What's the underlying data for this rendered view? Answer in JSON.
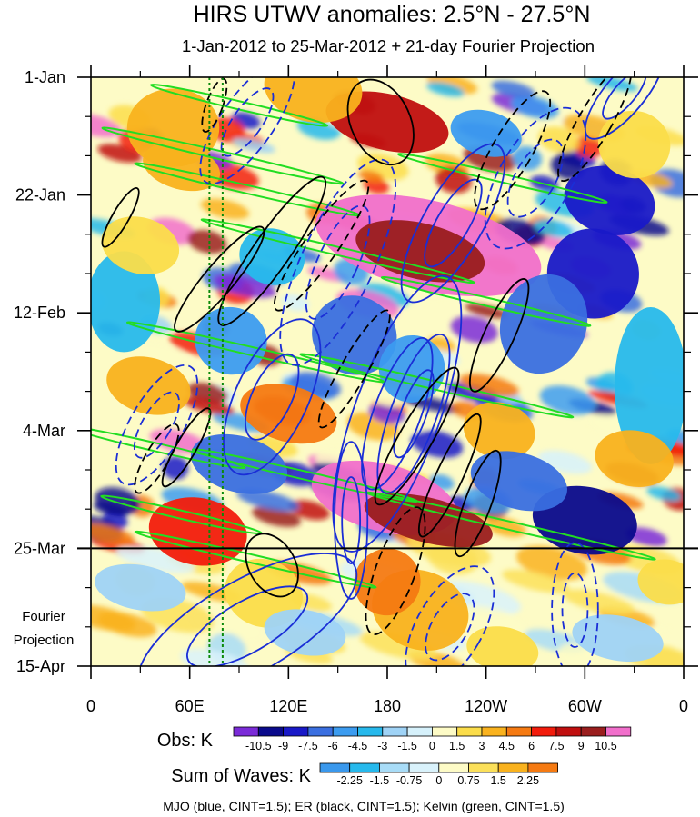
{
  "chart_data": {
    "type": "heatmap",
    "title": "HIRS UTWV anomalies: 2.5°N - 27.5°N",
    "subtitle": "1-Jan-2012 to 25-Mar-2012 + 21-day Fourier Projection",
    "x_axis": {
      "ticks": [
        {
          "lon": 0,
          "label": "0"
        },
        {
          "lon": 60,
          "label": "60E"
        },
        {
          "lon": 120,
          "label": "120E"
        },
        {
          "lon": 180,
          "label": "180"
        },
        {
          "lon": 240,
          "label": "120W"
        },
        {
          "lon": 300,
          "label": "60W"
        },
        {
          "lon": 360,
          "label": "0"
        }
      ],
      "range": [
        0,
        360
      ]
    },
    "y_axis": {
      "ticks": [
        {
          "day": 0,
          "label": "1-Jan"
        },
        {
          "day": 21,
          "label": "22-Jan"
        },
        {
          "day": 42,
          "label": "12-Feb"
        },
        {
          "day": 63,
          "label": "4-Mar"
        },
        {
          "day": 84,
          "label": "25-Mar"
        },
        {
          "day": 105,
          "label": "15-Apr"
        }
      ],
      "range": [
        0,
        105
      ],
      "reversed": true
    },
    "projection_start_day": 84,
    "projection_label": [
      "Fourier",
      "Projection"
    ],
    "reference_longitudes": [
      72,
      80
    ],
    "obs_colorbar": {
      "label": "Obs: K",
      "colors": [
        "#7b2bd8",
        "#0a0a8c",
        "#1919c8",
        "#3a6fe0",
        "#3c9cf0",
        "#27b9ec",
        "#9fd3f6",
        "#d6f1fb",
        "#fdfbc6",
        "#fbdd4a",
        "#f9b21e",
        "#f57a12",
        "#f21c0c",
        "#c00f0f",
        "#9a1e1e",
        "#f16fcb"
      ],
      "labels": [
        "-10.5",
        "-9",
        "-7.5",
        "-6",
        "-4.5",
        "-3",
        "-1.5",
        "0",
        "1.5",
        "3",
        "4.5",
        "6",
        "7.5",
        "9",
        "10.5"
      ]
    },
    "waves_colorbar": {
      "label": "Sum of Waves: K",
      "colors": [
        "#3a98ec",
        "#27b9ec",
        "#a8dcf7",
        "#d9f2fb",
        "#fdfbc6",
        "#fbe05a",
        "#f9b21e",
        "#f57a12"
      ],
      "labels": [
        "-2.25",
        "-1.5",
        "-0.75",
        "0",
        "0.75",
        "1.5",
        "2.25"
      ]
    },
    "footnote": "MJO (blue, CINT=1.5); ER (black, CINT=1.5); Kelvin (green, CINT=1.5)",
    "contour_colors": {
      "mjo": "#1a2ed6",
      "er": "#000000",
      "kelvin": "#22dd22"
    },
    "mjo_contours": [
      {
        "lon": 150,
        "day": 33,
        "dlon": 22,
        "dday": 20,
        "rot": 25,
        "dashed": true
      },
      {
        "lon": 186,
        "day": 60,
        "dlon": 26,
        "dday": 26,
        "rot": 20,
        "dashed": false
      },
      {
        "lon": 196,
        "day": 60,
        "dlon": 14,
        "dday": 15,
        "rot": 20,
        "dashed": false
      },
      {
        "lon": 220,
        "day": 26,
        "dlon": 18,
        "dday": 16,
        "rot": 30,
        "dashed": false
      },
      {
        "lon": 95,
        "day": 8,
        "dlon": 16,
        "dday": 13,
        "rot": 35,
        "dashed": true
      },
      {
        "lon": 324,
        "day": 3,
        "dlon": 12,
        "dday": 10,
        "rot": 40,
        "dashed": false
      },
      {
        "lon": 270,
        "day": 18,
        "dlon": 22,
        "dday": 14,
        "rot": 30,
        "dashed": true
      },
      {
        "lon": 95,
        "day": 98,
        "dlon": 28,
        "dday": 22,
        "rot": 60,
        "dashed": false
      },
      {
        "lon": 218,
        "day": 98,
        "dlon": 20,
        "dday": 12,
        "rot": 30,
        "dashed": true
      },
      {
        "lon": 294,
        "day": 95,
        "dlon": 14,
        "dday": 12,
        "rot": 0,
        "dashed": true
      },
      {
        "lon": 40,
        "day": 62,
        "dlon": 16,
        "dday": 12,
        "rot": 30,
        "dashed": true
      },
      {
        "lon": 158,
        "day": 79,
        "dlon": 10,
        "dday": 14,
        "rot": 0,
        "dashed": false
      },
      {
        "lon": 110,
        "day": 57,
        "dlon": 22,
        "dday": 15,
        "rot": 25,
        "dashed": false
      }
    ],
    "er_contours": [
      {
        "lon": 78,
        "day": 36,
        "dlon": 9,
        "dday": 12,
        "rot": 40,
        "dashed": false
      },
      {
        "lon": 110,
        "day": 31,
        "dlon": 11,
        "dday": 16,
        "rot": 35,
        "dashed": false
      },
      {
        "lon": 140,
        "day": 30,
        "dlon": 10,
        "dday": 14,
        "rot": 35,
        "dashed": true
      },
      {
        "lon": 176,
        "day": 8,
        "dlon": 18,
        "dday": 8,
        "rot": -25,
        "dashed": false
      },
      {
        "lon": 248,
        "day": 46,
        "dlon": 9,
        "dday": 11,
        "rot": 25,
        "dashed": false
      },
      {
        "lon": 256,
        "day": 13,
        "dlon": 12,
        "dday": 12,
        "rot": 30,
        "dashed": true
      },
      {
        "lon": 306,
        "day": 8,
        "dlon": 10,
        "dday": 12,
        "rot": 30,
        "dashed": true
      },
      {
        "lon": 198,
        "day": 64,
        "dlon": 10,
        "dday": 14,
        "rot": 30,
        "dashed": false
      },
      {
        "lon": 218,
        "day": 71,
        "dlon": 8,
        "dday": 12,
        "rot": 25,
        "dashed": false
      },
      {
        "lon": 235,
        "day": 76,
        "dlon": 8,
        "dday": 10,
        "rot": 20,
        "dashed": false
      },
      {
        "lon": 110,
        "day": 87,
        "dlon": 14,
        "dday": 6,
        "rot": -30,
        "dashed": false
      },
      {
        "lon": 185,
        "day": 88,
        "dlon": 12,
        "dday": 12,
        "rot": 20,
        "dashed": true
      },
      {
        "lon": 58,
        "day": 66,
        "dlon": 6,
        "dday": 8,
        "rot": 30,
        "dashed": false
      },
      {
        "lon": 40,
        "day": 68,
        "dlon": 7,
        "dday": 7,
        "rot": 30,
        "dashed": true
      },
      {
        "lon": 18,
        "day": 25,
        "dlon": 5,
        "dday": 6,
        "rot": 30,
        "dashed": false
      },
      {
        "lon": 75,
        "day": 5,
        "dlon": 5,
        "dday": 5,
        "rot": 20,
        "dashed": true
      },
      {
        "lon": 160,
        "day": 52,
        "dlon": 8,
        "dday": 12,
        "rot": 30,
        "dashed": true
      }
    ],
    "kelvin_bands": [
      {
        "lon": 90,
        "day": 5,
        "len": 110,
        "angle": 13
      },
      {
        "lon": 80,
        "day": 14,
        "len": 150,
        "angle": 13
      },
      {
        "lon": 95,
        "day": 20,
        "len": 140,
        "angle": 13
      },
      {
        "lon": 250,
        "day": 18,
        "len": 130,
        "angle": 13
      },
      {
        "lon": 150,
        "day": 31,
        "len": 170,
        "angle": 13
      },
      {
        "lon": 240,
        "day": 40,
        "len": 130,
        "angle": 13
      },
      {
        "lon": 100,
        "day": 49,
        "len": 160,
        "angle": 13
      },
      {
        "lon": 210,
        "day": 55,
        "len": 170,
        "angle": 13
      },
      {
        "lon": 40,
        "day": 66,
        "len": 110,
        "angle": 13
      },
      {
        "lon": 130,
        "day": 71,
        "len": 140,
        "angle": 13
      },
      {
        "lon": 255,
        "day": 80,
        "len": 180,
        "angle": 13
      },
      {
        "lon": 55,
        "day": 78,
        "len": 100,
        "angle": 13
      },
      {
        "lon": 100,
        "day": 86,
        "len": 150,
        "angle": 13
      }
    ],
    "obs_features": [
      {
        "lon": 205,
        "day": 30,
        "dlon": 70,
        "dday": 8,
        "rot": 13,
        "level": 15
      },
      {
        "lon": 200,
        "day": 31,
        "dlon": 40,
        "dday": 5,
        "rot": 13,
        "level": 14
      },
      {
        "lon": 180,
        "day": 8,
        "dlon": 38,
        "dday": 5,
        "rot": 13,
        "level": 13
      },
      {
        "lon": 178,
        "day": 75,
        "dlon": 45,
        "dday": 6,
        "rot": 14,
        "level": 15
      },
      {
        "lon": 205,
        "day": 79,
        "dlon": 40,
        "dday": 4,
        "rot": 14,
        "level": 14
      },
      {
        "lon": 65,
        "day": 81,
        "dlon": 30,
        "dday": 6,
        "rot": 10,
        "level": 12
      },
      {
        "lon": 120,
        "day": 60,
        "dlon": 30,
        "dday": 5,
        "rot": 15,
        "level": 11
      },
      {
        "lon": 50,
        "day": 9,
        "dlon": 28,
        "dday": 7,
        "rot": 0,
        "level": 10
      },
      {
        "lon": 135,
        "day": 2,
        "dlon": 30,
        "dday": 6,
        "rot": 10,
        "level": 10
      },
      {
        "lon": 305,
        "day": 35,
        "dlon": 28,
        "dday": 8,
        "rot": 20,
        "level": 2
      },
      {
        "lon": 275,
        "day": 44,
        "dlon": 26,
        "dday": 9,
        "rot": 20,
        "level": 3
      },
      {
        "lon": 315,
        "day": 22,
        "dlon": 28,
        "dday": 6,
        "rot": 15,
        "level": 2
      },
      {
        "lon": 300,
        "day": 79,
        "dlon": 32,
        "dday": 6,
        "rot": 10,
        "level": 1
      },
      {
        "lon": 160,
        "day": 46,
        "dlon": 26,
        "dday": 7,
        "rot": 20,
        "level": 3
      },
      {
        "lon": 85,
        "day": 47,
        "dlon": 22,
        "dday": 6,
        "rot": 15,
        "level": 4
      },
      {
        "lon": 20,
        "day": 40,
        "dlon": 22,
        "dday": 9,
        "rot": 0,
        "level": 5
      },
      {
        "lon": 340,
        "day": 55,
        "dlon": 22,
        "dday": 14,
        "rot": 0,
        "level": 5
      },
      {
        "lon": 195,
        "day": 52,
        "dlon": 20,
        "dday": 6,
        "rot": 15,
        "level": 4
      },
      {
        "lon": 110,
        "day": 32,
        "dlon": 20,
        "dday": 5,
        "rot": 15,
        "level": 5
      },
      {
        "lon": 248,
        "day": 63,
        "dlon": 22,
        "dday": 5,
        "rot": 15,
        "level": 10
      },
      {
        "lon": 30,
        "day": 30,
        "dlon": 24,
        "dday": 5,
        "rot": 15,
        "level": 9
      },
      {
        "lon": 330,
        "day": 68,
        "dlon": 24,
        "dday": 5,
        "rot": 10,
        "level": 10
      },
      {
        "lon": 105,
        "day": 92,
        "dlon": 24,
        "dday": 6,
        "rot": 20,
        "level": 9
      },
      {
        "lon": 200,
        "day": 95,
        "dlon": 30,
        "dday": 7,
        "rot": 20,
        "level": 10
      },
      {
        "lon": 180,
        "day": 90,
        "dlon": 20,
        "dday": 6,
        "rot": 40,
        "level": 11
      },
      {
        "lon": 250,
        "day": 102,
        "dlon": 22,
        "dday": 4,
        "rot": 10,
        "level": 9
      },
      {
        "lon": 30,
        "day": 91,
        "dlon": 28,
        "dday": 4,
        "rot": 10,
        "level": 6
      },
      {
        "lon": 320,
        "day": 100,
        "dlon": 28,
        "dday": 4,
        "rot": 10,
        "level": 6
      },
      {
        "lon": 130,
        "day": 99,
        "dlon": 25,
        "dday": 4,
        "rot": 10,
        "level": 6
      },
      {
        "lon": 350,
        "day": 90,
        "dlon": 18,
        "dday": 4,
        "rot": 10,
        "level": 9
      },
      {
        "lon": 90,
        "day": 69,
        "dlon": 30,
        "dday": 5,
        "rot": 15,
        "level": 3
      },
      {
        "lon": 260,
        "day": 72,
        "dlon": 30,
        "dday": 5,
        "rot": 15,
        "level": 3
      },
      {
        "lon": 35,
        "day": 55,
        "dlon": 26,
        "dday": 5,
        "rot": 15,
        "level": 10
      },
      {
        "lon": 55,
        "day": 16,
        "dlon": 24,
        "dday": 4,
        "rot": 15,
        "level": 10
      },
      {
        "lon": 240,
        "day": 10,
        "dlon": 22,
        "dday": 4,
        "rot": 15,
        "level": 4
      },
      {
        "lon": 330,
        "day": 12,
        "dlon": 22,
        "dday": 6,
        "rot": 15,
        "level": 9
      }
    ]
  }
}
